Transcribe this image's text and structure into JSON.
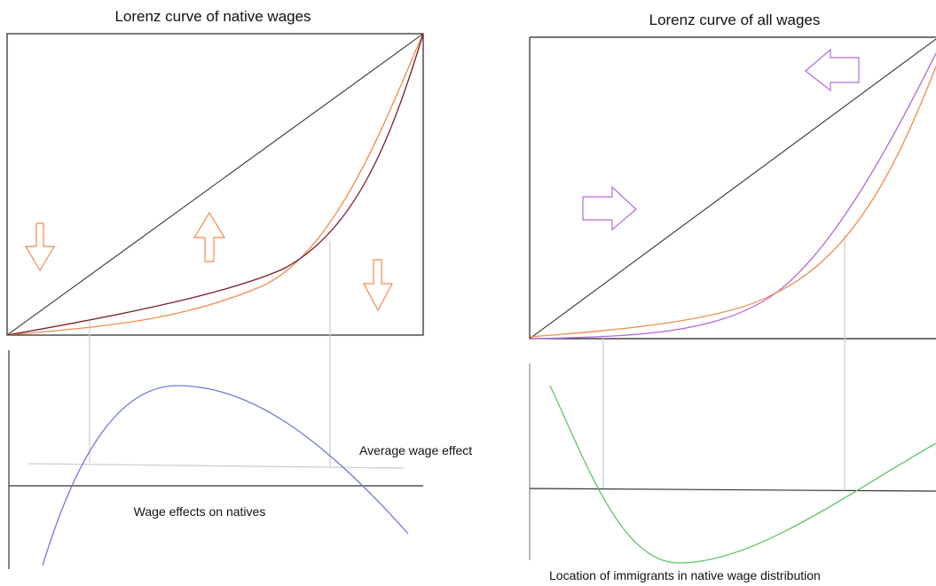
{
  "left_panel": {
    "title": "Lorenz curve of native wages",
    "average_label": "Average wage effect",
    "effects_label": "Wage effects on natives"
  },
  "right_panel": {
    "title": "Lorenz curve of all wages",
    "location_label": "Location of immigrants in native wage distribution"
  }
}
